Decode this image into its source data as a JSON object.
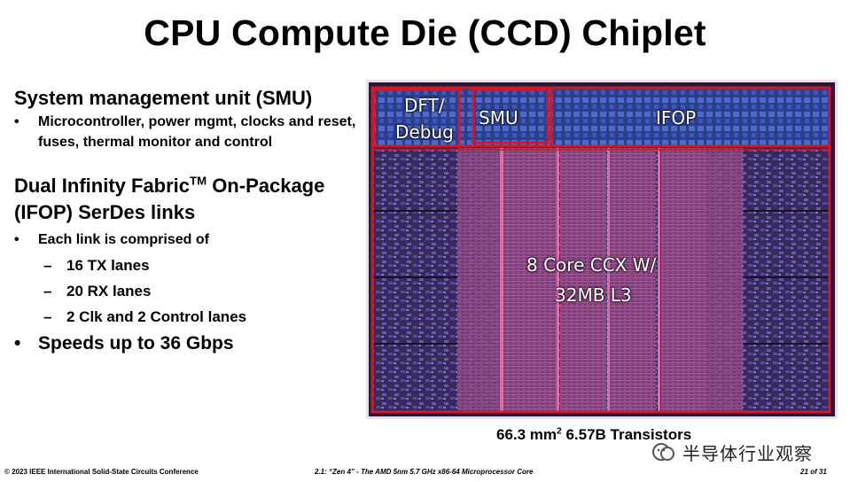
{
  "title": "CPU Compute Die (CCD) Chiplet",
  "smu": {
    "heading": "System management unit (SMU)",
    "bullet": "Microcontroller, power mgmt, clocks and reset, fuses, thermal monitor and control"
  },
  "ifop": {
    "heading_pre": "Dual Infinity Fabric",
    "heading_tm": "TM",
    "heading_post": " On-Package (IFOP) SerDes links",
    "bullet": "Each link is comprised of",
    "sub_items": [
      "16 TX lanes",
      "20 RX lanes",
      "2 Clk and 2 Control lanes"
    ],
    "speed_bullet": "Speeds up to 36 Gbps"
  },
  "bullet_char": "•",
  "dash_char": "–",
  "die_labels": {
    "dft_line1": "DFT/",
    "dft_line2": "Debug",
    "smu": "SMU",
    "ifop": "IFOP",
    "ccx_line1": "8 Core CCX W/",
    "ccx_line2": "32MB L3"
  },
  "caption": {
    "area": "66.3 mm",
    "area_sup": "2",
    "transistors": " 6.57B Transistors"
  },
  "footer": {
    "left": "© 2023 IEEE International Solid-State Circuits Conference",
    "center": "2.1: “Zen 4” - The AMD 5nm 5.7 GHz x86-64 Microprocessor Core",
    "right": "21 of 31"
  },
  "watermark": {
    "text": "半导体行业观察",
    "icon": "wechat-official-account-icon"
  },
  "colors": {
    "die_outline": "#d0182a",
    "die_bg": "#2a1e3c",
    "cache_pink": "#c24b8c"
  }
}
